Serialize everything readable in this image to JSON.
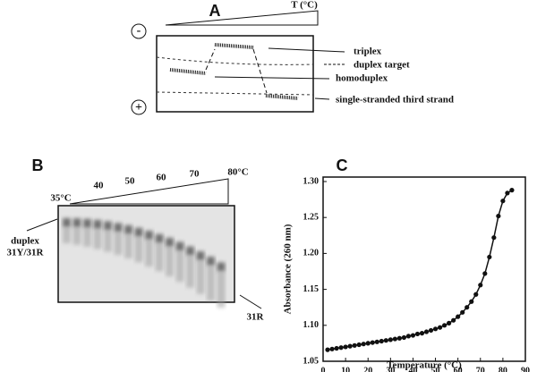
{
  "panel_a": {
    "label": "A",
    "temperature": "T (°C)",
    "minus": "-",
    "plus": "+",
    "labels": [
      "triplex",
      "duplex target",
      "homoduplex",
      "single-stranded third strand"
    ]
  },
  "panel_b": {
    "label": "B",
    "temperatures": [
      "35°C",
      "40",
      "50",
      "60",
      "70",
      "80°C"
    ],
    "duplex_label": [
      "duplex",
      "31Y/31R"
    ],
    "single_label": "31R"
  },
  "chart_data": {
    "type": "line",
    "panel_label": "C",
    "xlabel": "Temperature (°C)",
    "ylabel": "Absorbance (260 nm)",
    "color": "#111111",
    "x": [
      2,
      4,
      6,
      8,
      10,
      12,
      14,
      16,
      18,
      20,
      22,
      24,
      26,
      28,
      30,
      32,
      34,
      36,
      38,
      40,
      42,
      44,
      46,
      48,
      50,
      52,
      54,
      56,
      58,
      60,
      62,
      64,
      66,
      68,
      70,
      72,
      74,
      76,
      78,
      80,
      82,
      84
    ],
    "values": [
      1.066,
      1.067,
      1.068,
      1.069,
      1.07,
      1.071,
      1.072,
      1.073,
      1.074,
      1.075,
      1.076,
      1.077,
      1.078,
      1.079,
      1.08,
      1.081,
      1.082,
      1.083,
      1.085,
      1.086,
      1.088,
      1.089,
      1.091,
      1.093,
      1.095,
      1.097,
      1.1,
      1.103,
      1.107,
      1.112,
      1.118,
      1.125,
      1.133,
      1.143,
      1.156,
      1.172,
      1.195,
      1.222,
      1.252,
      1.273,
      1.284,
      1.288
    ],
    "xlim": [
      0,
      90
    ],
    "xticks": [
      0,
      10,
      20,
      30,
      40,
      50,
      60,
      70,
      80,
      90
    ],
    "ylim": [
      1.05,
      1.3
    ],
    "yticks": [
      1.05,
      {
        "value": 1.1,
        "label": "1.10"
      },
      1.15,
      {
        "value": 1.2,
        "label": "1.20"
      },
      1.25,
      {
        "value": 1.3,
        "label": "1.30"
      }
    ]
  }
}
